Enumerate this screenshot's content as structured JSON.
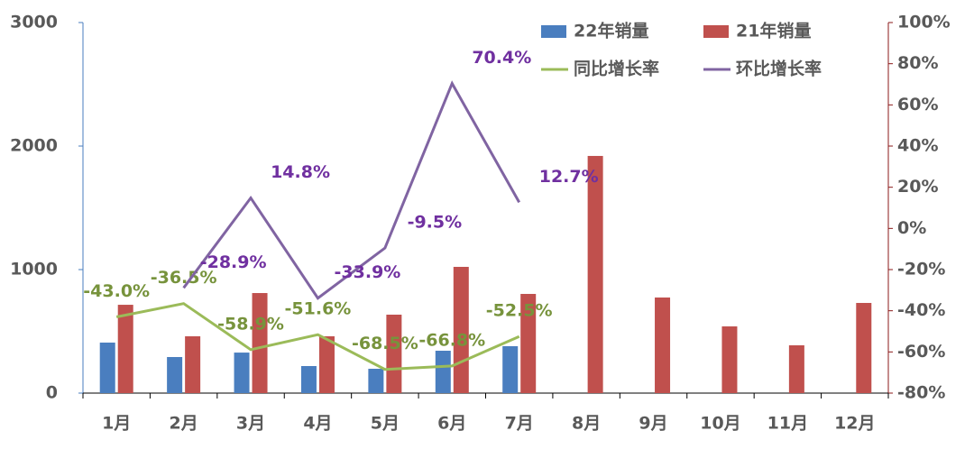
{
  "chart_data": {
    "type": "bar-line",
    "categories": [
      "1月",
      "2月",
      "3月",
      "4月",
      "5月",
      "6月",
      "7月",
      "8月",
      "9月",
      "10月",
      "11月",
      "12月"
    ],
    "ylim": [
      0,
      3000
    ],
    "yticks": [
      0,
      1000,
      2000,
      3000
    ],
    "y2lim": [
      -80,
      100
    ],
    "y2ticks": [
      {
        "value": -80,
        "label": "-80%"
      },
      {
        "value": -60,
        "label": "-60%"
      },
      {
        "value": -40,
        "label": "-40%"
      },
      {
        "value": -20,
        "label": "-20%"
      },
      {
        "value": 0,
        "label": "0%"
      },
      {
        "value": 20,
        "label": "20%"
      },
      {
        "value": 40,
        "label": "40%"
      },
      {
        "value": 60,
        "label": "60%"
      },
      {
        "value": 80,
        "label": "80%"
      },
      {
        "value": 100,
        "label": "100%"
      }
    ],
    "series": [
      {
        "name": "22年销量",
        "color": "#4a7ebf",
        "kind": "bar",
        "values": [
          409,
          292,
          328,
          219,
          197,
          343,
          380,
          null,
          null,
          null,
          null,
          null
        ]
      },
      {
        "name": "21年销量",
        "color": "#c0504d",
        "kind": "bar",
        "values": [
          715,
          460,
          810,
          460,
          635,
          1022,
          803,
          1920,
          774,
          540,
          387,
          730
        ]
      },
      {
        "name": "同比增长率",
        "color": "#9bbb59",
        "kind": "line",
        "axis": "y2",
        "values": [
          -43.0,
          -36.5,
          -58.9,
          -51.6,
          -68.5,
          -66.8,
          -52.5,
          null,
          null,
          null,
          null,
          null
        ],
        "value_labels": [
          "-43.0%",
          "-36.5%",
          "-58.9%",
          "-51.6%",
          "-68.5%",
          "-66.8%",
          "-52.5%",
          null,
          null,
          null,
          null,
          null
        ],
        "label_color": "#77933c"
      },
      {
        "name": "环比增长率",
        "color": "#8064a2",
        "kind": "line",
        "axis": "y2",
        "values": [
          null,
          -28.9,
          14.8,
          -33.9,
          -9.5,
          70.4,
          12.7,
          null,
          null,
          null,
          null,
          null
        ],
        "value_labels": [
          null,
          "-28.9%",
          "14.8%",
          "-33.9%",
          "-9.5%",
          "70.4%",
          "12.7%",
          null,
          null,
          null,
          null,
          null
        ],
        "label_color": "#7030a0"
      }
    ]
  }
}
